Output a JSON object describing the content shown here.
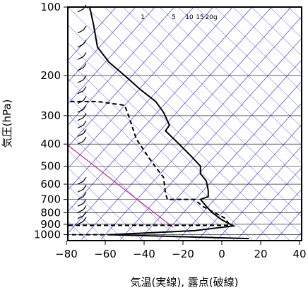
{
  "chart_data": {
    "type": "line",
    "title": "",
    "xlabel": "気温(実線), 露点(破線)",
    "ylabel": "気圧(hPa)",
    "xlim": [
      -80,
      40
    ],
    "ylim": [
      1050,
      100
    ],
    "y_scale": "log",
    "x_ticks": [
      -80,
      -60,
      -40,
      -20,
      0,
      20,
      40
    ],
    "x_tick_labels": [
      "−80",
      "−60",
      "−40",
      "−20",
      "0",
      "20",
      "40"
    ],
    "y_ticks": [
      100,
      200,
      300,
      400,
      500,
      600,
      700,
      800,
      900,
      1000
    ],
    "y_tick_labels": [
      "100",
      "200",
      "300",
      "400",
      "500",
      "600",
      "700",
      "800",
      "900",
      "1000"
    ],
    "grid": true,
    "skew": "skew-T",
    "mixing_ratio_labels": [
      "1",
      "5",
      "10",
      "15",
      "20g"
    ],
    "colors": {
      "isotherm": "#2020e0",
      "dry_adiabat": "#3a3af0",
      "parcel": "#c0208a",
      "grid": "#000000",
      "profile": "#000000"
    },
    "series": [
      {
        "style": "solid",
        "points": [
          {
            "t": -68,
            "p": 100
          },
          {
            "t": -66,
            "p": 120
          },
          {
            "t": -64,
            "p": 150
          },
          {
            "t": -58,
            "p": 175
          },
          {
            "t": -50,
            "p": 200
          },
          {
            "t": -42,
            "p": 230
          },
          {
            "t": -34,
            "p": 260
          },
          {
            "t": -30,
            "p": 290
          },
          {
            "t": -27,
            "p": 330
          },
          {
            "t": -29,
            "p": 350
          },
          {
            "t": -22,
            "p": 400
          },
          {
            "t": -16,
            "p": 450
          },
          {
            "t": -11,
            "p": 500
          },
          {
            "t": -11,
            "p": 540
          },
          {
            "t": -8,
            "p": 580
          },
          {
            "t": -7,
            "p": 640
          },
          {
            "t": -7,
            "p": 680
          },
          {
            "t": -11,
            "p": 700
          },
          {
            "t": -8,
            "p": 750
          },
          {
            "t": -5,
            "p": 800
          },
          {
            "t": 0,
            "p": 860
          },
          {
            "t": 6,
            "p": 915
          },
          {
            "t": -14,
            "p": 960
          },
          {
            "t": -58,
            "p": 1000
          },
          {
            "t": 14,
            "p": 1040
          }
        ]
      },
      {
        "style": "dashed",
        "points": [
          {
            "t": -78,
            "p": 260
          },
          {
            "t": -64,
            "p": 260
          },
          {
            "t": -50,
            "p": 270
          },
          {
            "t": -48,
            "p": 300
          },
          {
            "t": -44,
            "p": 380
          },
          {
            "t": -36,
            "p": 480
          },
          {
            "t": -30,
            "p": 560
          },
          {
            "t": -29,
            "p": 660
          },
          {
            "t": -28,
            "p": 700
          },
          {
            "t": -14,
            "p": 700
          },
          {
            "t": -10,
            "p": 750
          },
          {
            "t": -5,
            "p": 790
          },
          {
            "t": 2,
            "p": 850
          },
          {
            "t": 4,
            "p": 910
          },
          {
            "t": -80,
            "p": 910
          },
          {
            "t": -80,
            "p": 1000
          },
          {
            "t": -48,
            "p": 1000
          }
        ]
      }
    ],
    "parcel_line": [
      {
        "t": -80,
        "p": 400
      },
      {
        "t": -25,
        "p": 930
      }
    ]
  }
}
